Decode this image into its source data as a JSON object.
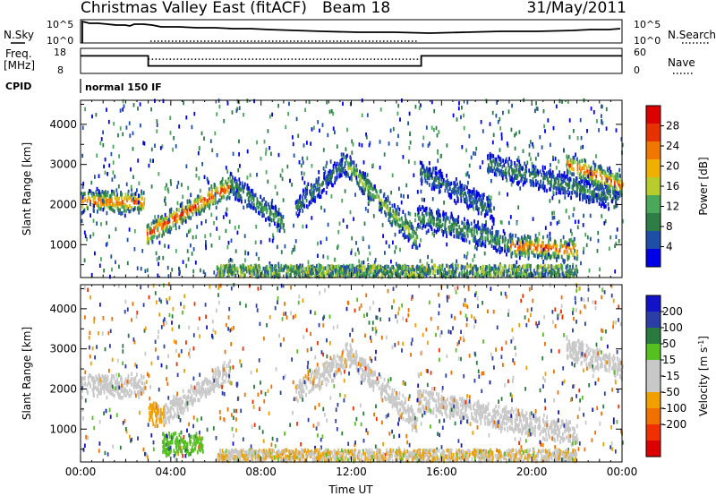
{
  "header": {
    "title": "Christmas Valley East (fitACF)",
    "beam": "Beam 18",
    "date": "31/May/2011"
  },
  "status_panels": {
    "nsky_label": "N.Sky",
    "nsearch_label": "N.Search",
    "noise_ticks": [
      "10^5",
      "10^0"
    ],
    "freq_label_line1": "Freq.",
    "freq_label_line2": "[MHz]",
    "freq_ticks": [
      "18",
      "8"
    ],
    "nave_label": "Nave",
    "nave_ticks": [
      "60",
      "0"
    ],
    "cpid_label": "CPID",
    "cpid_value": "normal 150 IF",
    "frequency_segments_mhz": [
      {
        "start_ut": 0,
        "end_ut": 3.0,
        "value": 15
      },
      {
        "start_ut": 3.0,
        "end_ut": 15.1,
        "value": 11
      },
      {
        "start_ut": 15.1,
        "end_ut": 24,
        "value": 15
      }
    ],
    "nave_approx": 34
  },
  "colors": {
    "power_scale": [
      "#0000e6",
      "#1f4ea8",
      "#2e7d46",
      "#49a85a",
      "#b8cc2e",
      "#f0b000",
      "#f07800",
      "#e63200",
      "#dc0000"
    ],
    "velocity_scale": [
      "#1212c8",
      "#2a3ea6",
      "#2a7a40",
      "#55c020",
      "#c8c8c8",
      "#c8c8c8",
      "#f0a000",
      "#f07000",
      "#f03000",
      "#dc0000"
    ]
  },
  "chart_data": [
    {
      "type": "heatmap",
      "name": "power",
      "xlabel": "",
      "ylabel": "Slant Range [km]",
      "x_ticks": [
        "00:00",
        "04:00",
        "08:00",
        "12:00",
        "16:00",
        "20:00",
        "00:00"
      ],
      "x_range_hours": [
        0,
        24
      ],
      "y_ticks": [
        "1000",
        "2000",
        "3000",
        "4000"
      ],
      "ylim": [
        180,
        4600
      ],
      "colorbar": {
        "label": "Power [dB]",
        "ticks": [
          "4",
          "8",
          "12",
          "16",
          "20",
          "24",
          "28"
        ],
        "range": [
          0,
          32
        ]
      },
      "features": [
        {
          "start_h": 0.0,
          "end_h": 2.8,
          "range_start_km": 2050,
          "range_end_km": 2050,
          "peak_db": 26
        },
        {
          "start_h": 2.9,
          "end_h": 6.6,
          "range_start_km": 1230,
          "range_end_km": 2450,
          "peak_db": 28
        },
        {
          "start_h": 6.6,
          "end_h": 9.0,
          "range_start_km": 2500,
          "range_end_km": 1500,
          "peak_db": 12
        },
        {
          "start_h": 9.5,
          "end_h": 11.7,
          "range_start_km": 1900,
          "range_end_km": 3000,
          "peak_db": 8
        },
        {
          "start_h": 11.7,
          "end_h": 14.9,
          "range_start_km": 3000,
          "range_end_km": 1100,
          "peak_db": 16
        },
        {
          "start_h": 14.9,
          "end_h": 19.0,
          "range_start_km": 1700,
          "range_end_km": 1000,
          "peak_db": 12
        },
        {
          "start_h": 19.0,
          "end_h": 22.0,
          "range_start_km": 950,
          "range_end_km": 850,
          "peak_db": 28
        },
        {
          "start_h": 15.0,
          "end_h": 18.3,
          "range_start_km": 2800,
          "range_end_km": 1800,
          "peak_db": 8
        },
        {
          "start_h": 18.0,
          "end_h": 23.8,
          "range_start_km": 3000,
          "range_end_km": 2100,
          "peak_db": 10
        },
        {
          "start_h": 21.5,
          "end_h": 24.0,
          "range_start_km": 3000,
          "range_end_km": 2450,
          "peak_db": 26
        }
      ]
    },
    {
      "type": "heatmap",
      "name": "velocity",
      "xlabel": "Time UT",
      "ylabel": "Slant Range [km]",
      "x_ticks": [
        "00:00",
        "04:00",
        "08:00",
        "12:00",
        "16:00",
        "20:00",
        "00:00"
      ],
      "x_range_hours": [
        0,
        24
      ],
      "y_ticks": [
        "1000",
        "2000",
        "3000",
        "4000"
      ],
      "ylim": [
        180,
        4600
      ],
      "colorbar": {
        "label": "Velocity [m s^-1]",
        "ticks": [
          "200",
          "100",
          "50",
          "15",
          "-15",
          "-50",
          "-100",
          "-200"
        ],
        "range": [
          -250,
          250
        ]
      },
      "features": [
        {
          "start_h": 0.0,
          "end_h": 2.8,
          "range_start_km": 2050,
          "range_end_km": 2050,
          "velocity_ms": 0
        },
        {
          "start_h": 3.0,
          "end_h": 3.7,
          "range_start_km": 1350,
          "range_end_km": 1350,
          "velocity_ms": -60
        },
        {
          "start_h": 3.7,
          "end_h": 6.6,
          "range_start_km": 1350,
          "range_end_km": 2450,
          "velocity_ms": 0
        },
        {
          "start_h": 3.6,
          "end_h": 5.4,
          "range_start_km": 600,
          "range_end_km": 600,
          "velocity_ms": 40
        },
        {
          "start_h": 9.5,
          "end_h": 11.7,
          "range_start_km": 1900,
          "range_end_km": 2700,
          "velocity_ms": -40
        },
        {
          "start_h": 11.7,
          "end_h": 14.9,
          "range_start_km": 2900,
          "range_end_km": 1150,
          "velocity_ms": 0
        },
        {
          "start_h": 14.9,
          "end_h": 22.0,
          "range_start_km": 1700,
          "range_end_km": 850,
          "velocity_ms": 0
        },
        {
          "start_h": 21.5,
          "end_h": 24.0,
          "range_start_km": 3000,
          "range_end_km": 2450,
          "velocity_ms": 0
        }
      ]
    }
  ]
}
